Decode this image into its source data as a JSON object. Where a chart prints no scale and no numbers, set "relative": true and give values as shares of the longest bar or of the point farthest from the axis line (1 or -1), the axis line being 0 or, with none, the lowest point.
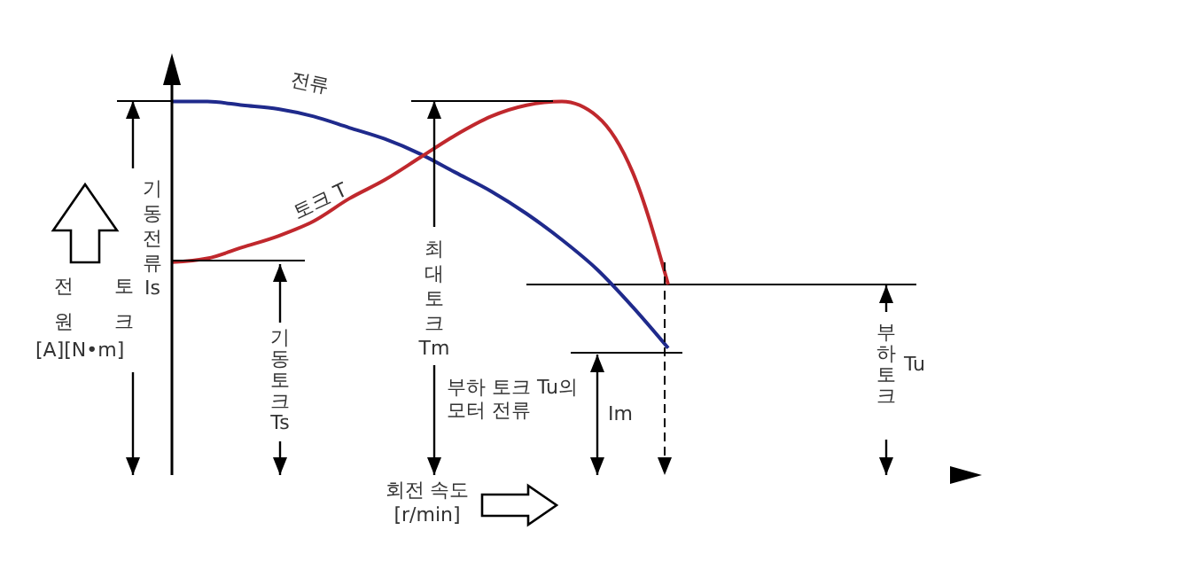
{
  "chart_data": {
    "type": "line",
    "relative": true,
    "xlabel": "회전 속도 [r/min]",
    "ylabel": "전원 토크 [A][N•m]",
    "categories": [
      null,
      null,
      null,
      null,
      null,
      null,
      null,
      null,
      null,
      null,
      null,
      null,
      null,
      null,
      null,
      null,
      null,
      null,
      null,
      null,
      null,
      null,
      null,
      null
    ],
    "series": [
      {
        "name": "전류",
        "color": "#1f2a8c",
        "values": [
          1.0,
          1.0,
          0.99,
          0.98,
          0.96,
          0.93,
          0.9,
          0.86,
          0.81,
          0.76,
          0.7,
          0.63,
          0.55,
          0.45,
          0.34,
          null,
          null,
          null,
          null,
          null,
          null,
          null,
          null,
          null
        ]
      },
      {
        "name": "토크 T",
        "color": "#c0282d",
        "values": [
          0.57,
          0.58,
          0.61,
          0.64,
          0.68,
          0.74,
          0.79,
          0.85,
          0.91,
          0.96,
          0.99,
          1.0,
          0.96,
          0.81,
          0.51,
          null,
          null,
          null,
          null,
          null,
          null,
          null,
          null,
          null
        ]
      }
    ],
    "ref_lines": [
      {
        "axis": "y",
        "value": 0.51,
        "color": "#000000"
      }
    ],
    "annotations": [
      "기동전류 Is",
      "기동토크 Ts",
      "최대토크 Tm",
      "부하 토크 Tu의 모터 전류",
      "Im",
      "부하토크 Tu"
    ]
  }
}
